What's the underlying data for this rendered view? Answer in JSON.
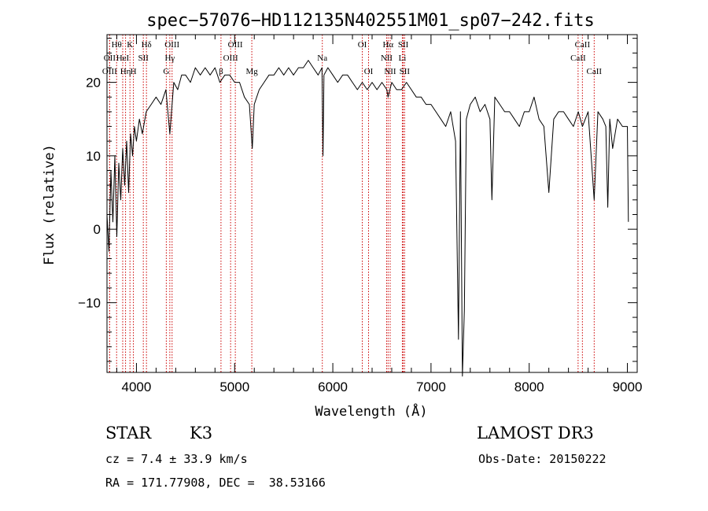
{
  "chart_data": {
    "type": "line",
    "title": "spec−57076−HD112135N402551M01_sp07−242.fits",
    "xlabel": "Wavelength (Å)",
    "ylabel": "Flux (relative)",
    "xlim": [
      3700,
      9100
    ],
    "ylim": [
      -19.5,
      26.5
    ],
    "x_ticks": [
      4000,
      5000,
      6000,
      7000,
      8000,
      9000
    ],
    "y_ticks": [
      -10,
      0,
      10,
      20
    ],
    "y_tick_labels": [
      "−10",
      "0",
      "10",
      "20"
    ],
    "grid": false,
    "line_color": "#000000",
    "marker_color": "#cc0000",
    "series": [
      {
        "x": [
          3700,
          3720,
          3740,
          3760,
          3780,
          3800,
          3820,
          3840,
          3860,
          3880,
          3900,
          3920,
          3940,
          3960,
          3980,
          4000,
          4030,
          4060,
          4100,
          4150,
          4200,
          4250,
          4300,
          4340,
          4380,
          4420,
          4460,
          4500,
          4550,
          4600,
          4650,
          4700,
          4750,
          4800,
          4850,
          4900,
          4950,
          5000,
          5050,
          5100,
          5150,
          5180,
          5200,
          5250,
          5300,
          5350,
          5400,
          5450,
          5500,
          5550,
          5600,
          5650,
          5700,
          5750,
          5800,
          5850,
          5890,
          5900,
          5910,
          5950,
          6000,
          6050,
          6100,
          6150,
          6200,
          6250,
          6300,
          6350,
          6400,
          6450,
          6500,
          6550,
          6563,
          6600,
          6650,
          6700,
          6750,
          6800,
          6850,
          6900,
          6950,
          7000,
          7050,
          7100,
          7150,
          7200,
          7250,
          7280,
          7300,
          7320,
          7340,
          7360,
          7380,
          7400,
          7450,
          7500,
          7550,
          7600,
          7620,
          7650,
          7700,
          7750,
          7800,
          7850,
          7900,
          7950,
          8000,
          8050,
          8100,
          8150,
          8200,
          8250,
          8300,
          8350,
          8400,
          8450,
          8500,
          8542,
          8600,
          8662,
          8700,
          8750,
          8780,
          8800,
          8820,
          8850,
          8900,
          8950,
          9000,
          9010
        ],
        "y": [
          2,
          -3,
          8,
          1,
          10,
          -1,
          9,
          4,
          11,
          6,
          12,
          5,
          13,
          10,
          14,
          12,
          15,
          13,
          16,
          17,
          18,
          17,
          19,
          13,
          20,
          19,
          21,
          21,
          20,
          22,
          21,
          22,
          21,
          22,
          20,
          21,
          21,
          20,
          20,
          18,
          17,
          11,
          17,
          19,
          20,
          21,
          21,
          22,
          21,
          22,
          21,
          22,
          22,
          23,
          22,
          21,
          22,
          10,
          21,
          22,
          21,
          20,
          21,
          21,
          20,
          19,
          20,
          19,
          20,
          19,
          20,
          19,
          18,
          20,
          19,
          19,
          20,
          19,
          18,
          18,
          17,
          17,
          16,
          15,
          14,
          16,
          12,
          -15,
          16,
          -20,
          -11,
          15,
          16,
          17,
          18,
          16,
          17,
          15,
          4,
          18,
          17,
          16,
          16,
          15,
          14,
          16,
          16,
          18,
          15,
          14,
          5,
          15,
          16,
          16,
          15,
          14,
          16,
          14,
          16,
          4,
          16,
          15,
          14,
          3,
          15,
          11,
          15,
          14,
          14,
          1
        ]
      }
    ],
    "spectral_lines": [
      {
        "label": "Hθ",
        "x": 3798,
        "row": 0
      },
      {
        "label": "OII",
        "x": 3727,
        "row": 1
      },
      {
        "label": "OIII",
        "x": 3727,
        "row": 2
      },
      {
        "label": "HeI",
        "x": 3860,
        "row": 1
      },
      {
        "label": "K",
        "x": 3934,
        "row": 0
      },
      {
        "label": "Hη",
        "x": 3889,
        "row": 2
      },
      {
        "label": "SII",
        "x": 4070,
        "row": 1
      },
      {
        "label": "H",
        "x": 3969,
        "row": 2
      },
      {
        "label": "Hδ",
        "x": 4102,
        "row": 0
      },
      {
        "label": "OIII",
        "x": 4363,
        "row": 0
      },
      {
        "label": "Hγ",
        "x": 4340,
        "row": 1
      },
      {
        "label": "G",
        "x": 4304,
        "row": 2
      },
      {
        "label": "OIII",
        "x": 5007,
        "row": 0
      },
      {
        "label": "OIII",
        "x": 4959,
        "row": 1
      },
      {
        "label": "β",
        "x": 4861,
        "row": 2
      },
      {
        "label": "Mg",
        "x": 5175,
        "row": 2
      },
      {
        "label": "Na",
        "x": 5893,
        "row": 1
      },
      {
        "label": "OI",
        "x": 6300,
        "row": 0
      },
      {
        "label": "OI",
        "x": 6364,
        "row": 2
      },
      {
        "label": "Hα",
        "x": 6563,
        "row": 0
      },
      {
        "label": "SII",
        "x": 6717,
        "row": 0
      },
      {
        "label": "NII",
        "x": 6548,
        "row": 1
      },
      {
        "label": "Li",
        "x": 6708,
        "row": 1
      },
      {
        "label": "NII",
        "x": 6584,
        "row": 2
      },
      {
        "label": "SII",
        "x": 6731,
        "row": 2
      },
      {
        "label": "CaII",
        "x": 8542,
        "row": 0
      },
      {
        "label": "CaII",
        "x": 8498,
        "row": 1
      },
      {
        "label": "CaII",
        "x": 8662,
        "row": 2
      }
    ]
  },
  "info": {
    "class_label": "STAR",
    "subclass": "K3",
    "survey": "LAMOST DR3",
    "redshift": "cz = 7.4 ± 33.9 km/s",
    "obs_date": "Obs-Date: 20150222",
    "coords": "RA = 171.77908, DEC =  38.53166"
  }
}
